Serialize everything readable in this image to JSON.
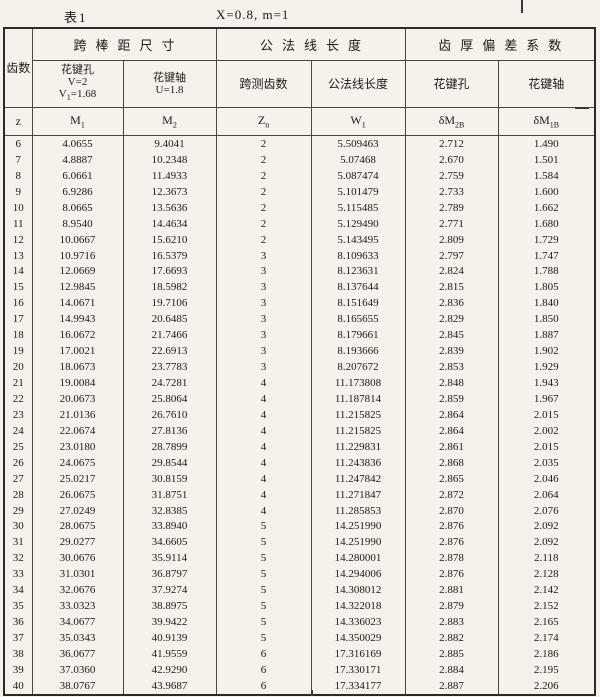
{
  "captions": {
    "table_label": "表1",
    "parameters": "X=0.8,  m=1"
  },
  "header": {
    "teeth": "齿数",
    "group_pin": "跨棒距尺寸",
    "group_normal": "公法线长度",
    "group_deviation": "齿厚偏差系数",
    "sub": {
      "hole_line1": "花键孔",
      "hole_line2": "V=2",
      "hole_line3_base": "V",
      "hole_line3_sub": "1",
      "hole_line3_rest": "=1.68",
      "shaft_line1": "花键轴",
      "shaft_line2": "U=1.8",
      "span_teeth": "跨测齿数",
      "normal_length": "公法线长度",
      "dev_hole": "花键孔",
      "dev_shaft": "花键轴"
    },
    "symbols": [
      {
        "key": "z",
        "base": "z",
        "sub": ""
      },
      {
        "key": "M1",
        "base": "M",
        "sub": "1"
      },
      {
        "key": "M2",
        "base": "M",
        "sub": "2"
      },
      {
        "key": "Zn",
        "base": "Z",
        "sub": "n"
      },
      {
        "key": "W1",
        "base": "W",
        "sub": "1"
      },
      {
        "key": "dM2B",
        "base": "δM",
        "sub": "2B"
      },
      {
        "key": "dM1B",
        "base": "δM",
        "sub": "1B"
      }
    ]
  },
  "chart_data": {
    "type": "table",
    "title": "表1 X=0.8, m=1 花键跨棒距尺寸、公法线长度与齿厚偏差系数表",
    "column_keys": [
      "z",
      "M1",
      "M2",
      "Zn",
      "W1",
      "dM2B",
      "dM1B"
    ],
    "columns": [
      "齿数 z",
      "花键孔 M₁ (V=2, V₁=1.68)",
      "花键轴 M₂ (U=1.8)",
      "跨测齿数 Zₙ",
      "公法线长度 W₁",
      "齿厚偏差系数 花键孔 δM₂B",
      "齿厚偏差系数 花键轴 δM₁B"
    ],
    "rows": [
      [
        "6",
        "4.0655",
        "9.4041",
        "2",
        "5.509463",
        "2.712",
        "1.490"
      ],
      [
        "7",
        "4.8887",
        "10.2348",
        "2",
        "5.07468",
        "2.670",
        "1.501"
      ],
      [
        "8",
        "6.0661",
        "11.4933",
        "2",
        "5.087474",
        "2.759",
        "1.584"
      ],
      [
        "9",
        "6.9286",
        "12.3673",
        "2",
        "5.101479",
        "2.733",
        "1.600"
      ],
      [
        "10",
        "8.0665",
        "13.5636",
        "2",
        "5.115485",
        "2.789",
        "1.662"
      ],
      [
        "11",
        "8.9540",
        "14.4634",
        "2",
        "5.129490",
        "2.771",
        "1.680"
      ],
      [
        "12",
        "10.0667",
        "15.6210",
        "2",
        "5.143495",
        "2.809",
        "1.729"
      ],
      [
        "13",
        "10.9716",
        "16.5379",
        "3",
        "8.109633",
        "2.797",
        "1.747"
      ],
      [
        "14",
        "12.0669",
        "17.6693",
        "3",
        "8.123631",
        "2.824",
        "1.788"
      ],
      [
        "15",
        "12.9845",
        "18.5982",
        "3",
        "8.137644",
        "2.815",
        "1.805"
      ],
      [
        "16",
        "14.0671",
        "19.7106",
        "3",
        "8.151649",
        "2.836",
        "1.840"
      ],
      [
        "17",
        "14.9943",
        "20.6485",
        "3",
        "8.165655",
        "2.829",
        "1.850"
      ],
      [
        "18",
        "16.0672",
        "21.7466",
        "3",
        "8.179661",
        "2.845",
        "1.887"
      ],
      [
        "19",
        "17.0021",
        "22.6913",
        "3",
        "8.193666",
        "2.839",
        "1.902"
      ],
      [
        "20",
        "18.0673",
        "23.7783",
        "3",
        "8.207672",
        "2.853",
        "1.929"
      ],
      [
        "21",
        "19.0084",
        "24.7281",
        "4",
        "11.173808",
        "2.848",
        "1.943"
      ],
      [
        "22",
        "20.0673",
        "25.8064",
        "4",
        "11.187814",
        "2.859",
        "1.967"
      ],
      [
        "23",
        "21.0136",
        "26.7610",
        "4",
        "11.215825",
        "2.864",
        "2.015"
      ],
      [
        "24",
        "22.0674",
        "27.8136",
        "4",
        "11.215825",
        "2.864",
        "2.002"
      ],
      [
        "25",
        "23.0180",
        "28.7899",
        "4",
        "11.229831",
        "2.861",
        "2.015"
      ],
      [
        "26",
        "24.0675",
        "29.8544",
        "4",
        "11.243836",
        "2.868",
        "2.035"
      ],
      [
        "27",
        "25.0217",
        "30.8159",
        "4",
        "11.247842",
        "2.865",
        "2.046"
      ],
      [
        "28",
        "26.0675",
        "31.8751",
        "4",
        "11.271847",
        "2.872",
        "2.064"
      ],
      [
        "29",
        "27.0249",
        "32.8385",
        "4",
        "11.285853",
        "2.870",
        "2.076"
      ],
      [
        "30",
        "28.0675",
        "33.8940",
        "5",
        "14.251990",
        "2.876",
        "2.092"
      ],
      [
        "31",
        "29.0277",
        "34.6605",
        "5",
        "14.251990",
        "2.876",
        "2.092"
      ],
      [
        "32",
        "30.0676",
        "35.9114",
        "5",
        "14.280001",
        "2.878",
        "2.118"
      ],
      [
        "33",
        "31.0301",
        "36.8797",
        "5",
        "14.294006",
        "2.876",
        "2.128"
      ],
      [
        "34",
        "32.0676",
        "37.9274",
        "5",
        "14.308012",
        "2.881",
        "2.142"
      ],
      [
        "35",
        "33.0323",
        "38.8975",
        "5",
        "14.322018",
        "2.879",
        "2.152"
      ],
      [
        "36",
        "34.0677",
        "39.9422",
        "5",
        "14.336023",
        "2.883",
        "2.165"
      ],
      [
        "37",
        "35.0343",
        "40.9139",
        "5",
        "14.350029",
        "2.882",
        "2.174"
      ],
      [
        "38",
        "36.0677",
        "41.9559",
        "6",
        "17.316169",
        "2.885",
        "2.186"
      ],
      [
        "39",
        "37.0360",
        "42.9290",
        "6",
        "17.330171",
        "2.884",
        "2.195"
      ],
      [
        "40",
        "38.0767",
        "43.9687",
        "6",
        "17.334177",
        "2.887",
        "2.206"
      ]
    ]
  }
}
